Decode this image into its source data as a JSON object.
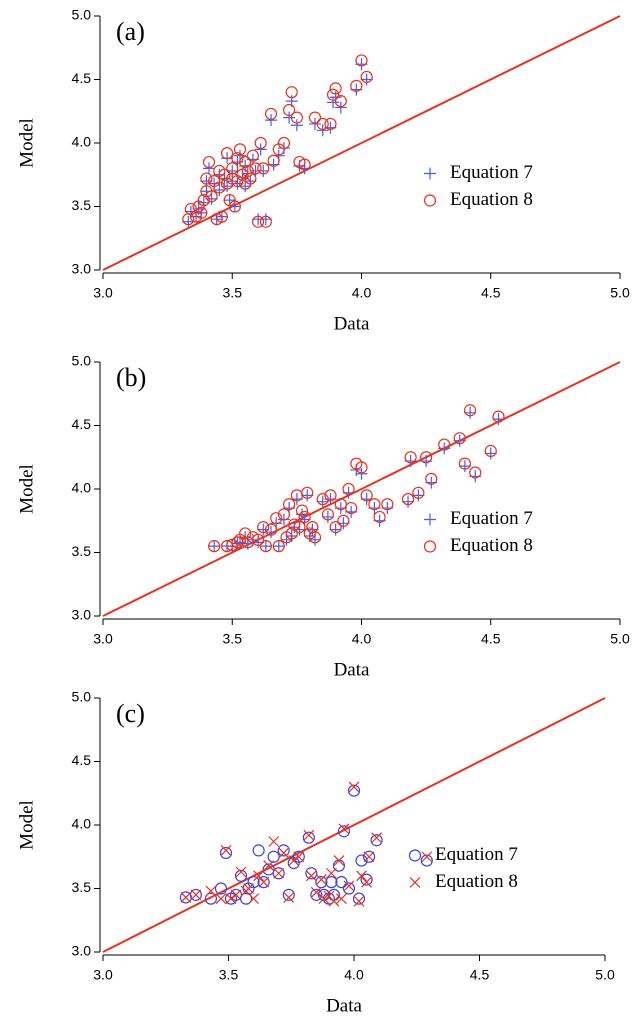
{
  "chart_data": [
    {
      "type": "scatter",
      "panel_label": "(a)",
      "x_label": "Data",
      "y_label": "Model",
      "xlim": [
        3,
        5
      ],
      "ylim": [
        3,
        5
      ],
      "xticks": [
        {
          "value": 3,
          "label": "3.0"
        },
        {
          "value": 3.5,
          "label": "3.5"
        },
        {
          "value": 4,
          "label": "4.0"
        },
        {
          "value": 4.5,
          "label": "4.5"
        },
        {
          "value": 5,
          "label": "5.0"
        }
      ],
      "yticks": [
        {
          "value": 3,
          "label": "3.0"
        },
        {
          "value": 3.5,
          "label": "3.5"
        },
        {
          "value": 4,
          "label": "4.0"
        },
        {
          "value": 4.5,
          "label": "4.5"
        },
        {
          "value": 5,
          "label": "5.0"
        }
      ],
      "legend": "center right",
      "line": {
        "x": [
          3,
          5
        ],
        "values": [
          3,
          5
        ],
        "color": "#e8321e"
      },
      "x": [
        3.33,
        3.34,
        3.36,
        3.37,
        3.38,
        3.39,
        3.4,
        3.4,
        3.41,
        3.42,
        3.43,
        3.44,
        3.45,
        3.45,
        3.46,
        3.47,
        3.48,
        3.48,
        3.49,
        3.5,
        3.5,
        3.51,
        3.52,
        3.52,
        3.53,
        3.54,
        3.55,
        3.55,
        3.56,
        3.57,
        3.58,
        3.59,
        3.6,
        3.61,
        3.62,
        3.63,
        3.65,
        3.66,
        3.68,
        3.7,
        3.72,
        3.73,
        3.75,
        3.76,
        3.78,
        3.82,
        3.85,
        3.88,
        3.89,
        3.9,
        3.92,
        3.98,
        4.0,
        4.02
      ],
      "series": [
        {
          "name": "Equation 7",
          "color": "#4a5ee8",
          "marker": "plus",
          "values": [
            3.38,
            3.46,
            3.42,
            3.48,
            3.45,
            3.53,
            3.7,
            3.62,
            3.8,
            3.56,
            3.68,
            3.4,
            3.75,
            3.63,
            3.42,
            3.72,
            3.88,
            3.66,
            3.55,
            3.78,
            3.7,
            3.5,
            3.85,
            3.68,
            3.9,
            3.73,
            3.82,
            3.66,
            3.76,
            3.7,
            3.87,
            3.78,
            3.4,
            3.95,
            3.78,
            3.4,
            4.18,
            3.83,
            3.9,
            3.96,
            4.2,
            4.33,
            4.14,
            3.82,
            3.8,
            4.15,
            4.1,
            4.12,
            4.32,
            4.36,
            4.28,
            4.42,
            4.62,
            4.5
          ]
        },
        {
          "name": "Equation 8",
          "color": "#e8321e",
          "marker": "circle",
          "values": [
            3.4,
            3.48,
            3.42,
            3.5,
            3.45,
            3.55,
            3.72,
            3.62,
            3.85,
            3.58,
            3.7,
            3.4,
            3.78,
            3.65,
            3.42,
            3.75,
            3.92,
            3.68,
            3.55,
            3.8,
            3.72,
            3.5,
            3.88,
            3.7,
            3.95,
            3.75,
            3.85,
            3.68,
            3.78,
            3.72,
            3.9,
            3.8,
            3.38,
            4.0,
            3.8,
            3.38,
            4.23,
            3.86,
            3.95,
            4.0,
            4.26,
            4.4,
            4.2,
            3.85,
            3.83,
            4.2,
            4.15,
            4.15,
            4.38,
            4.43,
            4.33,
            4.45,
            4.65,
            4.52
          ]
        }
      ]
    },
    {
      "type": "scatter",
      "panel_label": "(b)",
      "x_label": "Data",
      "y_label": "Model",
      "xlim": [
        3,
        5
      ],
      "ylim": [
        3,
        5
      ],
      "xticks": [
        {
          "value": 3,
          "label": "3.0"
        },
        {
          "value": 3.5,
          "label": "3.5"
        },
        {
          "value": 4,
          "label": "4.0"
        },
        {
          "value": 4.5,
          "label": "4.5"
        },
        {
          "value": 5,
          "label": "5.0"
        }
      ],
      "yticks": [
        {
          "value": 3,
          "label": "3.0"
        },
        {
          "value": 3.5,
          "label": "3.5"
        },
        {
          "value": 4,
          "label": "4.0"
        },
        {
          "value": 4.5,
          "label": "4.5"
        },
        {
          "value": 5,
          "label": "5.0"
        }
      ],
      "legend": "center right",
      "line": {
        "x": [
          3,
          5
        ],
        "values": [
          3,
          5
        ],
        "color": "#e8321e"
      },
      "x": [
        3.43,
        3.48,
        3.5,
        3.52,
        3.53,
        3.55,
        3.56,
        3.58,
        3.6,
        3.62,
        3.63,
        3.65,
        3.67,
        3.68,
        3.7,
        3.71,
        3.72,
        3.73,
        3.74,
        3.75,
        3.76,
        3.77,
        3.78,
        3.79,
        3.8,
        3.81,
        3.82,
        3.85,
        3.87,
        3.88,
        3.9,
        3.92,
        3.93,
        3.95,
        3.96,
        3.98,
        4.0,
        4.02,
        4.05,
        4.07,
        4.1,
        4.18,
        4.19,
        4.22,
        4.25,
        4.27,
        4.32,
        4.38,
        4.4,
        4.42,
        4.44,
        4.5,
        4.53
      ],
      "series": [
        {
          "name": "Equation 7",
          "color": "#4a5ee8",
          "marker": "plus",
          "values": [
            3.55,
            3.55,
            3.55,
            3.57,
            3.58,
            3.62,
            3.57,
            3.6,
            3.58,
            3.68,
            3.55,
            3.66,
            3.73,
            3.55,
            3.76,
            3.6,
            3.85,
            3.63,
            3.7,
            3.92,
            3.68,
            3.8,
            3.76,
            3.95,
            3.63,
            3.68,
            3.6,
            3.9,
            3.78,
            3.92,
            3.68,
            3.85,
            3.73,
            3.97,
            3.82,
            4.15,
            4.12,
            3.92,
            3.85,
            3.75,
            3.85,
            3.9,
            4.22,
            3.95,
            4.22,
            4.05,
            4.32,
            4.38,
            4.18,
            4.6,
            4.1,
            4.28,
            4.55
          ]
        },
        {
          "name": "Equation 8",
          "color": "#e8321e",
          "marker": "circle",
          "values": [
            3.55,
            3.55,
            3.56,
            3.58,
            3.6,
            3.65,
            3.58,
            3.62,
            3.6,
            3.7,
            3.55,
            3.68,
            3.77,
            3.55,
            3.8,
            3.62,
            3.88,
            3.65,
            3.72,
            3.95,
            3.7,
            3.83,
            3.78,
            3.97,
            3.65,
            3.7,
            3.62,
            3.92,
            3.8,
            3.95,
            3.7,
            3.88,
            3.75,
            4.0,
            3.85,
            4.2,
            4.17,
            3.95,
            3.88,
            3.78,
            3.88,
            3.92,
            4.25,
            3.97,
            4.25,
            4.08,
            4.35,
            4.4,
            4.2,
            4.62,
            4.13,
            4.3,
            4.57
          ]
        }
      ]
    },
    {
      "type": "scatter",
      "panel_label": "(c)",
      "x_label": "Data",
      "y_label": "Model",
      "xlim": [
        3,
        5
      ],
      "ylim": [
        3,
        5
      ],
      "xticks": [
        {
          "value": 3,
          "label": "3.0"
        },
        {
          "value": 3.5,
          "label": "3.5"
        },
        {
          "value": 4,
          "label": "4.0"
        },
        {
          "value": 4.5,
          "label": "4.5"
        },
        {
          "value": 5,
          "label": "5.0"
        }
      ],
      "yticks": [
        {
          "value": 3,
          "label": "3.0"
        },
        {
          "value": 3.5,
          "label": "3.5"
        },
        {
          "value": 4,
          "label": "4.0"
        },
        {
          "value": 4.5,
          "label": "4.5"
        },
        {
          "value": 5,
          "label": "5.0"
        }
      ],
      "legend": "center right",
      "line": {
        "x": [
          3,
          5
        ],
        "values": [
          3,
          5
        ],
        "color": "#e8321e"
      },
      "x": [
        3.33,
        3.37,
        3.43,
        3.47,
        3.49,
        3.51,
        3.53,
        3.55,
        3.57,
        3.58,
        3.6,
        3.62,
        3.64,
        3.66,
        3.68,
        3.7,
        3.72,
        3.74,
        3.76,
        3.78,
        3.82,
        3.83,
        3.85,
        3.87,
        3.88,
        3.9,
        3.91,
        3.92,
        3.94,
        3.95,
        3.96,
        3.98,
        4.0,
        4.02,
        4.03,
        4.05,
        4.06,
        4.09,
        4.29
      ],
      "series": [
        {
          "name": "Equation 7",
          "color": "#3a46e0",
          "marker": "circle",
          "values": [
            3.43,
            3.45,
            3.42,
            3.5,
            3.78,
            3.42,
            3.45,
            3.6,
            3.42,
            3.5,
            3.55,
            3.8,
            3.55,
            3.65,
            3.75,
            3.62,
            3.8,
            3.45,
            3.7,
            3.75,
            3.9,
            3.62,
            3.45,
            3.55,
            3.45,
            3.42,
            3.55,
            3.45,
            3.68,
            3.55,
            3.95,
            3.5,
            4.27,
            3.42,
            3.72,
            3.57,
            3.75,
            3.88,
            3.72
          ]
        },
        {
          "name": "Equation 8",
          "color": "#e8321e",
          "marker": "cross",
          "values": [
            3.43,
            3.45,
            3.48,
            3.42,
            3.8,
            3.42,
            3.45,
            3.63,
            3.48,
            3.5,
            3.42,
            3.6,
            3.55,
            3.68,
            3.87,
            3.62,
            3.78,
            3.43,
            3.72,
            3.75,
            3.92,
            3.6,
            3.47,
            3.57,
            3.42,
            3.44,
            3.62,
            3.4,
            3.72,
            3.42,
            3.97,
            3.52,
            4.3,
            3.4,
            3.6,
            3.55,
            3.75,
            3.9,
            3.75
          ]
        }
      ]
    }
  ]
}
